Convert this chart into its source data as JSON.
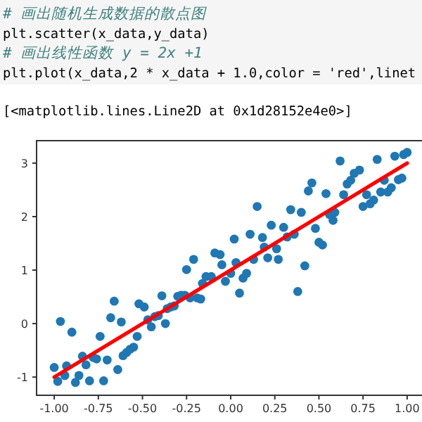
{
  "chart_data": {
    "type": "scatter",
    "annotations": [
      "# 画出随机生成数据的散点图",
      "plt.scatter(x_data,y_data)",
      "# 画出线性函数 y = 2x +1",
      "plt.plot(x_data,2 * x_data + 1.0,color = 'red',linet",
      "[<matplotlib.lines.Line2D at 0x1d28152e4e0>]"
    ],
    "xlim": [
      -1.1,
      1.1
    ],
    "ylim": [
      -1.34,
      3.42
    ],
    "xticks": [
      {
        "value": -1,
        "label": "-1.00"
      },
      {
        "value": -0.75,
        "label": "-0.75"
      },
      {
        "value": -0.5,
        "label": "-0.50"
      },
      {
        "value": -0.25,
        "label": "-0.25"
      },
      {
        "value": 0,
        "label": "0.00"
      },
      {
        "value": 0.25,
        "label": "0.25"
      },
      {
        "value": 0.5,
        "label": "0.50"
      },
      {
        "value": 0.75,
        "label": "0.75"
      },
      {
        "value": 1,
        "label": "1.00"
      }
    ],
    "yticks": [
      -1,
      0,
      1,
      2,
      3
    ],
    "grid": false,
    "series": [
      {
        "marker": "circle",
        "color": "#1f77b4",
        "x": [
          -0.965,
          -0.9,
          -1.0,
          -0.98,
          -0.93,
          -0.94,
          -0.88,
          -0.86,
          -0.84,
          -0.82,
          -0.8,
          -0.78,
          -0.76,
          -0.74,
          -0.72,
          -0.7,
          -0.68,
          -0.66,
          -0.64,
          -0.62,
          -0.61,
          -0.59,
          -0.57,
          -0.55,
          -0.53,
          -0.52,
          -0.49,
          -0.47,
          -0.45,
          -0.43,
          -0.41,
          -0.39,
          -0.37,
          -0.36,
          -0.34,
          -0.32,
          -0.3,
          -0.28,
          -0.26,
          -0.23,
          -0.19,
          -0.17,
          -0.16,
          -0.03,
          0.05,
          0.38,
          -0.25,
          -0.21,
          -0.14,
          -0.11,
          -0.09,
          -0.06,
          -0.05,
          0.0,
          0.02,
          0.03,
          0.07,
          0.09,
          0.11,
          0.13,
          0.15,
          0.18,
          0.19,
          0.21,
          0.23,
          0.26,
          0.27,
          0.3,
          0.32,
          0.34,
          0.36,
          0.4,
          0.42,
          0.44,
          0.46,
          0.48,
          0.5,
          0.52,
          0.54,
          0.56,
          0.58,
          0.59,
          0.62,
          0.64,
          0.66,
          0.68,
          0.7,
          0.73,
          0.75,
          0.77,
          0.79,
          0.81,
          0.83,
          0.85,
          0.87,
          0.89,
          0.91,
          0.93,
          0.95,
          0.97,
          0.98,
          1.0
        ],
        "values": [
          0.04,
          -0.16,
          -0.82,
          -1.08,
          -0.79,
          -0.97,
          -1.1,
          -0.97,
          -0.61,
          -0.77,
          -1.07,
          -0.63,
          -0.66,
          -0.24,
          -1.07,
          -0.68,
          0.11,
          0.42,
          -0.86,
          0.03,
          -0.6,
          -0.54,
          -0.48,
          -0.44,
          -0.24,
          0.37,
          0.31,
          0.07,
          -0.06,
          0.13,
          0.15,
          0.52,
          0.0,
          0.28,
          0.31,
          0.33,
          0.51,
          0.53,
          0.53,
          0.48,
          0.48,
          0.46,
          0.75,
          0.79,
          0.57,
          0.6,
          1.01,
          1.2,
          0.88,
          0.88,
          1.32,
          1.29,
          1.1,
          0.94,
          1.58,
          1.14,
          0.85,
          0.94,
          1.67,
          1.2,
          2.19,
          1.61,
          1.43,
          1.23,
          1.84,
          1.4,
          1.2,
          1.8,
          1.62,
          2.13,
          1.67,
          2.08,
          1.08,
          2.48,
          2.63,
          1.78,
          1.52,
          1.47,
          2.43,
          2.04,
          1.93,
          2.08,
          3.04,
          2.41,
          2.61,
          2.68,
          2.81,
          2.87,
          2.19,
          2.41,
          2.24,
          2.31,
          3.07,
          2.46,
          2.68,
          2.46,
          2.54,
          3.13,
          2.69,
          2.72,
          3.16,
          3.2
        ]
      },
      {
        "type": "line",
        "color": "#ff0000",
        "line_style": "solid",
        "x": [
          -1,
          1
        ],
        "values": [
          -1,
          3
        ]
      }
    ]
  }
}
